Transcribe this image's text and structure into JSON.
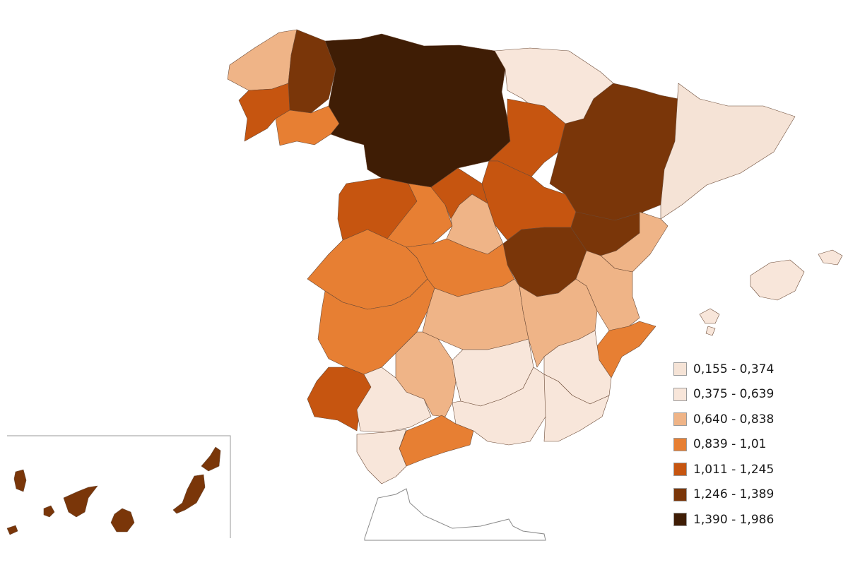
{
  "palette": {
    "c1": "#f5e3d6",
    "c2": "#f8e6da",
    "c3": "#efb487",
    "c4": "#e77f33",
    "c5": "#c65510",
    "c6": "#7a3609",
    "c7": "#3f1d05",
    "stroke": "#6b4a36",
    "frame": "#9a9a9a"
  },
  "legend": [
    {
      "label": "0,155 - 0,374",
      "color_key": "c1"
    },
    {
      "label": "0,375 - 0,639",
      "color_key": "c2"
    },
    {
      "label": "0,640 - 0,838",
      "color_key": "c3"
    },
    {
      "label": "0,839 - 1,01",
      "color_key": "c4"
    },
    {
      "label": "1,011 - 1,245",
      "color_key": "c5"
    },
    {
      "label": "1,246 - 1,389",
      "color_key": "c6"
    },
    {
      "label": "1,390 - 1,986",
      "color_key": "c7"
    }
  ],
  "regions": [
    {
      "name": "galicia-north",
      "class": "c3"
    },
    {
      "name": "galicia-lugo",
      "class": "c6"
    },
    {
      "name": "galicia-pontevedra",
      "class": "c5"
    },
    {
      "name": "galicia-ourense",
      "class": "c4"
    },
    {
      "name": "northwest-core",
      "class": "c7"
    },
    {
      "name": "basque-navarra",
      "class": "c2"
    },
    {
      "name": "la-rioja-burgos-east",
      "class": "c5"
    },
    {
      "name": "soria-guadalajara",
      "class": "c5"
    },
    {
      "name": "aragon",
      "class": "c6"
    },
    {
      "name": "catalonia",
      "class": "c1"
    },
    {
      "name": "salamanca",
      "class": "c5"
    },
    {
      "name": "avila",
      "class": "c4"
    },
    {
      "name": "segovia",
      "class": "c5"
    },
    {
      "name": "madrid",
      "class": "c3"
    },
    {
      "name": "cuenca",
      "class": "c6"
    },
    {
      "name": "teruel",
      "class": "c6"
    },
    {
      "name": "castellon",
      "class": "c3"
    },
    {
      "name": "caceres",
      "class": "c4"
    },
    {
      "name": "toledo",
      "class": "c4"
    },
    {
      "name": "badajoz",
      "class": "c4"
    },
    {
      "name": "ciudad-real",
      "class": "c3"
    },
    {
      "name": "albacete",
      "class": "c3"
    },
    {
      "name": "valencia",
      "class": "c3"
    },
    {
      "name": "alicante",
      "class": "c4"
    },
    {
      "name": "murcia",
      "class": "c2"
    },
    {
      "name": "huelva",
      "class": "c5"
    },
    {
      "name": "sevilla",
      "class": "c2"
    },
    {
      "name": "cordoba",
      "class": "c3"
    },
    {
      "name": "jaen",
      "class": "c2"
    },
    {
      "name": "granada",
      "class": "c2"
    },
    {
      "name": "almeria",
      "class": "c2"
    },
    {
      "name": "malaga",
      "class": "c4"
    },
    {
      "name": "cadiz",
      "class": "c2"
    },
    {
      "name": "mallorca",
      "class": "c2"
    },
    {
      "name": "menorca",
      "class": "c2"
    },
    {
      "name": "ibiza",
      "class": "c2"
    },
    {
      "name": "canary-islands",
      "class": "c6"
    },
    {
      "name": "north-africa-coast",
      "class": "none"
    }
  ]
}
